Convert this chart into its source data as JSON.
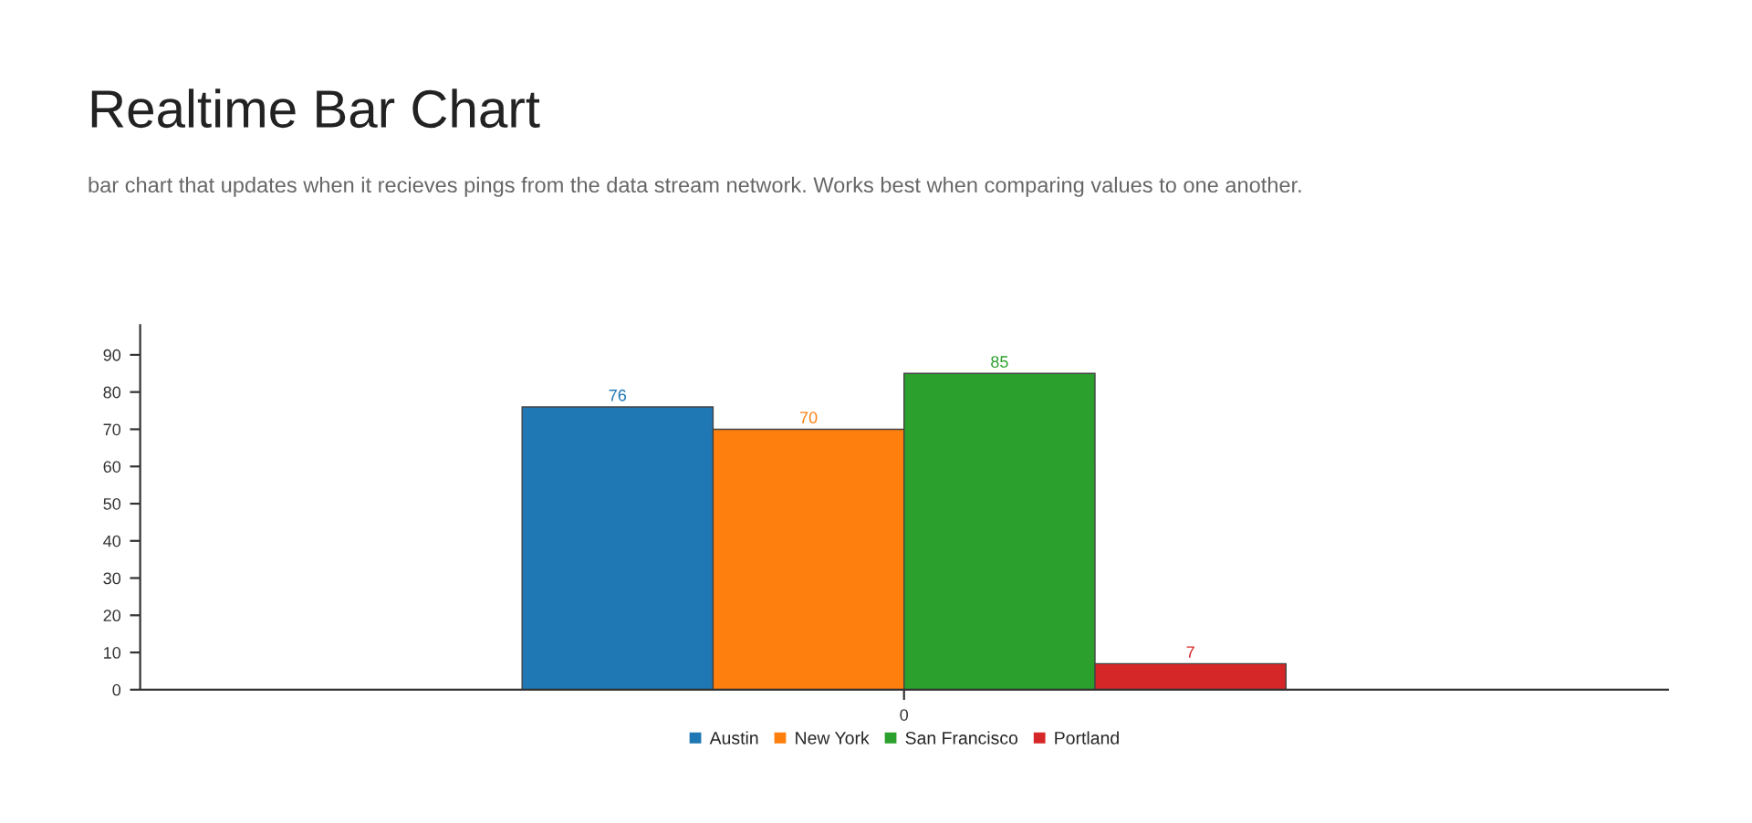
{
  "chart_data": {
    "type": "bar",
    "title": "Realtime Bar Chart",
    "subtitle": "bar chart that updates when it recieves pings from the data stream network. Works best when comparing values to one another.",
    "categories": [
      "0"
    ],
    "series": [
      {
        "name": "Austin",
        "color": "#1f77b4",
        "values": [
          76
        ]
      },
      {
        "name": "New York",
        "color": "#ff7f0e",
        "values": [
          70
        ]
      },
      {
        "name": "San Francisco",
        "color": "#2ca02c",
        "values": [
          85
        ]
      },
      {
        "name": "Portland",
        "color": "#d62728",
        "values": [
          7
        ]
      }
    ],
    "ylim": [
      0,
      98
    ],
    "yticks": [
      0,
      10,
      20,
      30,
      40,
      50,
      60,
      70,
      80,
      90
    ],
    "data_labels": true,
    "grid": false,
    "legend": "bottom"
  }
}
